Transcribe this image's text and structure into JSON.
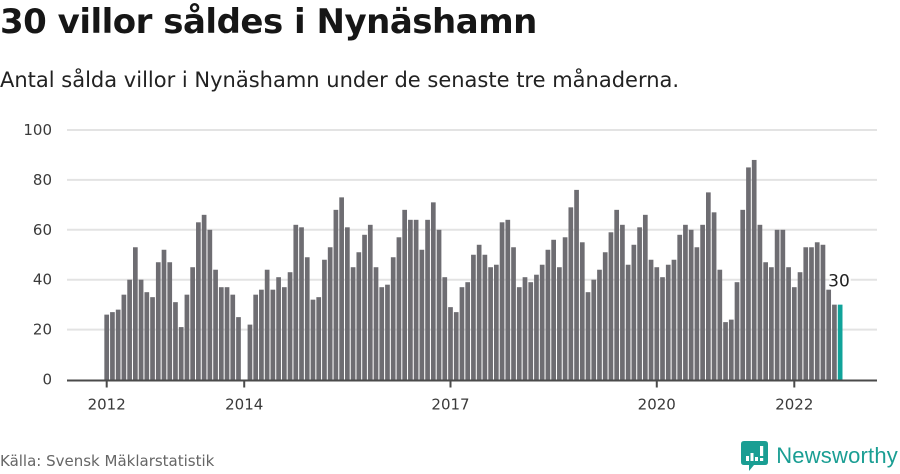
{
  "header": {
    "title": "30 villor såldes i Nynäshamn",
    "subtitle": "Antal sålda villor i Nynäshamn under de senaste tre månaderna."
  },
  "footer": {
    "source": "Källa: Svensk Mäklarstatistik",
    "brand_name": "Newsworthy",
    "brand_icon": "newsworthy-logo-icon"
  },
  "colors": {
    "bar": "#6e6d72",
    "highlight": "#10a39a",
    "grid": "#e3e3e3",
    "brand": "#1a9e93"
  },
  "chart_data": {
    "type": "bar",
    "title": "30 villor såldes i Nynäshamn",
    "subtitle": "Antal sålda villor i Nynäshamn under de senaste tre månaderna.",
    "xlabel": "",
    "ylabel": "",
    "ylim": [
      0,
      100
    ],
    "yticks": [
      0,
      20,
      40,
      60,
      80,
      100
    ],
    "xticks": [
      {
        "label": "2012",
        "index": 0
      },
      {
        "label": "2014",
        "index": 24
      },
      {
        "label": "2017",
        "index": 60
      },
      {
        "label": "2020",
        "index": 96
      },
      {
        "label": "2022",
        "index": 120
      }
    ],
    "grid": true,
    "legend": null,
    "start_period": "2012-01",
    "end_period": "2022-09",
    "frequency": "monthly",
    "highlight_last": true,
    "annotation": {
      "text": "30",
      "target": "2022-09"
    },
    "series": [
      {
        "name": "Sålda villor",
        "values": [
          26,
          27,
          28,
          34,
          40,
          53,
          40,
          35,
          33,
          47,
          52,
          47,
          31,
          21,
          34,
          45,
          63,
          66,
          60,
          44,
          37,
          37,
          34,
          25,
          null,
          22,
          34,
          36,
          44,
          36,
          41,
          37,
          43,
          62,
          61,
          49,
          32,
          33,
          48,
          53,
          68,
          73,
          61,
          45,
          51,
          58,
          62,
          45,
          37,
          38,
          49,
          57,
          68,
          64,
          64,
          52,
          64,
          71,
          60,
          41,
          29,
          27,
          37,
          39,
          50,
          54,
          50,
          45,
          46,
          63,
          64,
          53,
          37,
          41,
          39,
          42,
          46,
          52,
          56,
          45,
          57,
          69,
          76,
          55,
          35,
          40,
          44,
          51,
          59,
          68,
          62,
          46,
          54,
          61,
          66,
          48,
          45,
          41,
          46,
          48,
          58,
          62,
          60,
          53,
          62,
          75,
          67,
          44,
          23,
          24,
          39,
          68,
          85,
          88,
          62,
          47,
          45,
          60,
          60,
          45,
          37,
          43,
          53,
          53,
          55,
          54,
          36,
          30,
          30
        ]
      }
    ]
  }
}
